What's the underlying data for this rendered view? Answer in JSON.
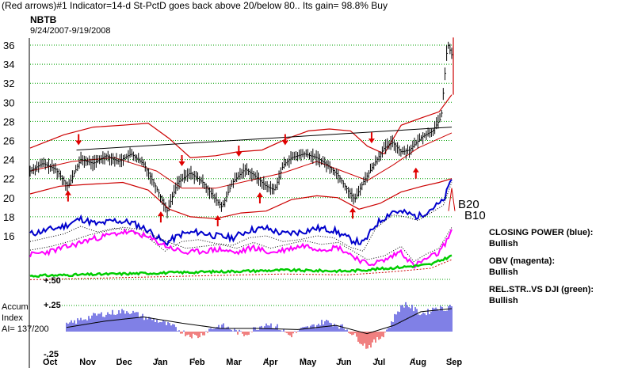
{
  "header": {
    "title": "(Red arrows)#1 Indicator=14-d St-PctD goes back above 20/below 80.. Its gain= 98.8% Buy",
    "symbol": "NBTB",
    "date_range": "9/24/2007-9/19/2008"
  },
  "indicators": {
    "closing_power": {
      "label": "CLOSING POWER (blue):",
      "status": "Bullish",
      "color": "#0000cc"
    },
    "obv": {
      "label": "OBV (magenta):",
      "status": "Bullish",
      "color": "#ff00ff"
    },
    "rel_str": {
      "label": "REL.STR..VS DJI (green):",
      "status": "Bullish",
      "color": "#00cc00"
    }
  },
  "accum": {
    "line1": "Accum",
    "line2": "Index",
    "value_label": "AI= 137/200",
    "tick_top": "+.50",
    "tick_mid": "+.25",
    "tick_low": "-.25"
  },
  "band_labels": {
    "upper": "B20",
    "lower": "B10"
  },
  "chart_data": {
    "type": "line",
    "ylim": [
      14,
      37
    ],
    "yticks": [
      16,
      18,
      20,
      22,
      24,
      26,
      28,
      30,
      32,
      34,
      36
    ],
    "grid": true,
    "x_months": [
      "Oct",
      "Nov",
      "Dec",
      "Jan",
      "Feb",
      "Mar",
      "Apr",
      "May",
      "Jun",
      "Jul",
      "Aug",
      "Sep"
    ],
    "price_points": [
      {
        "t": 0.0,
        "v": 22.8
      },
      {
        "t": 0.03,
        "v": 23.6
      },
      {
        "t": 0.06,
        "v": 23.0
      },
      {
        "t": 0.09,
        "v": 21.2
      },
      {
        "t": 0.12,
        "v": 24.0
      },
      {
        "t": 0.15,
        "v": 23.6
      },
      {
        "t": 0.18,
        "v": 24.4
      },
      {
        "t": 0.21,
        "v": 23.8
      },
      {
        "t": 0.24,
        "v": 24.6
      },
      {
        "t": 0.27,
        "v": 23.5
      },
      {
        "t": 0.3,
        "v": 21.0
      },
      {
        "t": 0.325,
        "v": 18.6
      },
      {
        "t": 0.35,
        "v": 21.6
      },
      {
        "t": 0.38,
        "v": 22.6
      },
      {
        "t": 0.41,
        "v": 21.6
      },
      {
        "t": 0.43,
        "v": 20.4
      },
      {
        "t": 0.455,
        "v": 19.0
      },
      {
        "t": 0.48,
        "v": 21.6
      },
      {
        "t": 0.51,
        "v": 23.0
      },
      {
        "t": 0.53,
        "v": 22.4
      },
      {
        "t": 0.56,
        "v": 21.2
      },
      {
        "t": 0.58,
        "v": 20.8
      },
      {
        "t": 0.6,
        "v": 23.4
      },
      {
        "t": 0.62,
        "v": 24.2
      },
      {
        "t": 0.65,
        "v": 24.6
      },
      {
        "t": 0.68,
        "v": 24.2
      },
      {
        "t": 0.7,
        "v": 23.6
      },
      {
        "t": 0.73,
        "v": 22.4
      },
      {
        "t": 0.75,
        "v": 21.0
      },
      {
        "t": 0.77,
        "v": 19.8
      },
      {
        "t": 0.79,
        "v": 21.6
      },
      {
        "t": 0.82,
        "v": 23.8
      },
      {
        "t": 0.84,
        "v": 25.2
      },
      {
        "t": 0.86,
        "v": 25.8
      },
      {
        "t": 0.88,
        "v": 24.8
      },
      {
        "t": 0.9,
        "v": 25.0
      },
      {
        "t": 0.93,
        "v": 26.4
      },
      {
        "t": 0.955,
        "v": 27.0
      },
      {
        "t": 0.975,
        "v": 28.4
      },
      {
        "t": 0.99,
        "v": 36.2
      },
      {
        "t": 1.0,
        "v": 35.0
      }
    ],
    "upper_band": [
      {
        "t": 0.0,
        "v": 25.2
      },
      {
        "t": 0.08,
        "v": 26.6
      },
      {
        "t": 0.15,
        "v": 27.4
      },
      {
        "t": 0.22,
        "v": 27.6
      },
      {
        "t": 0.28,
        "v": 27.8
      },
      {
        "t": 0.33,
        "v": 26.2
      },
      {
        "t": 0.38,
        "v": 24.2
      },
      {
        "t": 0.44,
        "v": 24.4
      },
      {
        "t": 0.49,
        "v": 24.8
      },
      {
        "t": 0.55,
        "v": 25.0
      },
      {
        "t": 0.61,
        "v": 26.2
      },
      {
        "t": 0.66,
        "v": 27.0
      },
      {
        "t": 0.71,
        "v": 27.2
      },
      {
        "t": 0.76,
        "v": 27.0
      },
      {
        "t": 0.8,
        "v": 25.4
      },
      {
        "t": 0.84,
        "v": 24.6
      },
      {
        "t": 0.88,
        "v": 27.6
      },
      {
        "t": 0.93,
        "v": 28.4
      },
      {
        "t": 0.97,
        "v": 29.0
      },
      {
        "t": 1.0,
        "v": 30.8
      }
    ],
    "lower_band": [
      {
        "t": 0.0,
        "v": 20.4
      },
      {
        "t": 0.07,
        "v": 21.2
      },
      {
        "t": 0.14,
        "v": 21.4
      },
      {
        "t": 0.22,
        "v": 21.6
      },
      {
        "t": 0.28,
        "v": 20.8
      },
      {
        "t": 0.33,
        "v": 18.8
      },
      {
        "t": 0.38,
        "v": 18.0
      },
      {
        "t": 0.44,
        "v": 17.8
      },
      {
        "t": 0.5,
        "v": 18.4
      },
      {
        "t": 0.56,
        "v": 18.6
      },
      {
        "t": 0.62,
        "v": 19.8
      },
      {
        "t": 0.68,
        "v": 20.2
      },
      {
        "t": 0.73,
        "v": 20.0
      },
      {
        "t": 0.78,
        "v": 18.8
      },
      {
        "t": 0.83,
        "v": 19.4
      },
      {
        "t": 0.88,
        "v": 20.6
      },
      {
        "t": 0.93,
        "v": 21.2
      },
      {
        "t": 0.97,
        "v": 21.6
      },
      {
        "t": 1.0,
        "v": 22.0
      }
    ],
    "moving_average": [
      {
        "t": 0.0,
        "v": 22.8
      },
      {
        "t": 0.1,
        "v": 23.8
      },
      {
        "t": 0.2,
        "v": 24.2
      },
      {
        "t": 0.3,
        "v": 22.8
      },
      {
        "t": 0.36,
        "v": 21.0
      },
      {
        "t": 0.44,
        "v": 21.0
      },
      {
        "t": 0.52,
        "v": 21.8
      },
      {
        "t": 0.6,
        "v": 22.6
      },
      {
        "t": 0.68,
        "v": 23.8
      },
      {
        "t": 0.74,
        "v": 22.8
      },
      {
        "t": 0.8,
        "v": 21.8
      },
      {
        "t": 0.86,
        "v": 23.4
      },
      {
        "t": 0.92,
        "v": 25.2
      },
      {
        "t": 1.0,
        "v": 26.8
      }
    ],
    "trendline": [
      {
        "t": 0.11,
        "v": 25.0
      },
      {
        "t": 1.0,
        "v": 27.4
      }
    ],
    "buy_arrows": [
      {
        "t": 0.09,
        "v": 19.6
      },
      {
        "t": 0.31,
        "v": 17.4
      },
      {
        "t": 0.445,
        "v": 17.0
      },
      {
        "t": 0.545,
        "v": 19.4
      },
      {
        "t": 0.765,
        "v": 17.8
      },
      {
        "t": 0.915,
        "v": 22.0
      }
    ],
    "sell_arrows": [
      {
        "t": 0.115,
        "v": 26.0
      },
      {
        "t": 0.36,
        "v": 23.8
      },
      {
        "t": 0.495,
        "v": 24.8
      },
      {
        "t": 0.605,
        "v": 26.0
      },
      {
        "t": 0.81,
        "v": 26.2
      }
    ],
    "closing_power_series": [
      {
        "t": 0.0,
        "v": 16.2
      },
      {
        "t": 0.04,
        "v": 16.6
      },
      {
        "t": 0.08,
        "v": 17.0
      },
      {
        "t": 0.12,
        "v": 17.8
      },
      {
        "t": 0.16,
        "v": 17.2
      },
      {
        "t": 0.2,
        "v": 17.6
      },
      {
        "t": 0.24,
        "v": 17.4
      },
      {
        "t": 0.28,
        "v": 16.6
      },
      {
        "t": 0.32,
        "v": 15.2
      },
      {
        "t": 0.36,
        "v": 16.2
      },
      {
        "t": 0.4,
        "v": 16.4
      },
      {
        "t": 0.44,
        "v": 16.0
      },
      {
        "t": 0.48,
        "v": 15.8
      },
      {
        "t": 0.52,
        "v": 16.6
      },
      {
        "t": 0.56,
        "v": 16.8
      },
      {
        "t": 0.6,
        "v": 16.2
      },
      {
        "t": 0.64,
        "v": 16.4
      },
      {
        "t": 0.68,
        "v": 16.8
      },
      {
        "t": 0.72,
        "v": 16.6
      },
      {
        "t": 0.76,
        "v": 15.6
      },
      {
        "t": 0.79,
        "v": 15.2
      },
      {
        "t": 0.82,
        "v": 17.2
      },
      {
        "t": 0.86,
        "v": 18.6
      },
      {
        "t": 0.89,
        "v": 18.4
      },
      {
        "t": 0.92,
        "v": 18.0
      },
      {
        "t": 0.95,
        "v": 18.8
      },
      {
        "t": 0.98,
        "v": 19.6
      },
      {
        "t": 1.0,
        "v": 22.0
      }
    ],
    "obv_series": [
      {
        "t": 0.0,
        "v": 14.0
      },
      {
        "t": 0.05,
        "v": 14.4
      },
      {
        "t": 0.1,
        "v": 15.0
      },
      {
        "t": 0.14,
        "v": 15.6
      },
      {
        "t": 0.18,
        "v": 16.0
      },
      {
        "t": 0.22,
        "v": 16.4
      },
      {
        "t": 0.26,
        "v": 16.2
      },
      {
        "t": 0.3,
        "v": 15.4
      },
      {
        "t": 0.33,
        "v": 14.8
      },
      {
        "t": 0.37,
        "v": 14.2
      },
      {
        "t": 0.41,
        "v": 14.4
      },
      {
        "t": 0.45,
        "v": 14.6
      },
      {
        "t": 0.49,
        "v": 14.2
      },
      {
        "t": 0.53,
        "v": 14.8
      },
      {
        "t": 0.57,
        "v": 14.2
      },
      {
        "t": 0.61,
        "v": 14.6
      },
      {
        "t": 0.65,
        "v": 15.0
      },
      {
        "t": 0.69,
        "v": 14.6
      },
      {
        "t": 0.73,
        "v": 14.8
      },
      {
        "t": 0.77,
        "v": 13.8
      },
      {
        "t": 0.8,
        "v": 13.0
      },
      {
        "t": 0.84,
        "v": 13.4
      },
      {
        "t": 0.88,
        "v": 14.4
      },
      {
        "t": 0.91,
        "v": 12.8
      },
      {
        "t": 0.94,
        "v": 13.6
      },
      {
        "t": 0.97,
        "v": 14.2
      },
      {
        "t": 1.0,
        "v": 16.4
      }
    ],
    "rel_str_series": [
      {
        "t": 0.0,
        "v": 11.8
      },
      {
        "t": 0.2,
        "v": 12.0
      },
      {
        "t": 0.4,
        "v": 12.2
      },
      {
        "t": 0.6,
        "v": 12.4
      },
      {
        "t": 0.75,
        "v": 12.3
      },
      {
        "t": 0.85,
        "v": 12.6
      },
      {
        "t": 0.95,
        "v": 13.0
      },
      {
        "t": 1.0,
        "v": 13.9
      }
    ],
    "accum_ylim": [
      -0.25,
      0.5
    ],
    "accum_series": [
      {
        "t": 0.0,
        "v": 0.06
      },
      {
        "t": 0.04,
        "v": 0.12
      },
      {
        "t": 0.08,
        "v": 0.16
      },
      {
        "t": 0.12,
        "v": 0.18
      },
      {
        "t": 0.16,
        "v": 0.2
      },
      {
        "t": 0.2,
        "v": 0.14
      },
      {
        "t": 0.24,
        "v": 0.1
      },
      {
        "t": 0.28,
        "v": 0.04
      },
      {
        "t": 0.31,
        "v": -0.02
      },
      {
        "t": 0.34,
        "v": -0.05
      },
      {
        "t": 0.37,
        "v": 0.02
      },
      {
        "t": 0.4,
        "v": 0.06
      },
      {
        "t": 0.43,
        "v": 0.02
      },
      {
        "t": 0.46,
        "v": -0.03
      },
      {
        "t": 0.49,
        "v": 0.03
      },
      {
        "t": 0.52,
        "v": 0.08
      },
      {
        "t": 0.55,
        "v": 0.04
      },
      {
        "t": 0.58,
        "v": -0.04
      },
      {
        "t": 0.61,
        "v": 0.02
      },
      {
        "t": 0.64,
        "v": 0.05
      },
      {
        "t": 0.67,
        "v": 0.1
      },
      {
        "t": 0.7,
        "v": 0.07
      },
      {
        "t": 0.73,
        "v": 0.02
      },
      {
        "t": 0.76,
        "v": -0.08
      },
      {
        "t": 0.78,
        "v": -0.15
      },
      {
        "t": 0.8,
        "v": -0.1
      },
      {
        "t": 0.82,
        "v": -0.04
      },
      {
        "t": 0.84,
        "v": 0.06
      },
      {
        "t": 0.86,
        "v": 0.2
      },
      {
        "t": 0.88,
        "v": 0.27
      },
      {
        "t": 0.9,
        "v": 0.22
      },
      {
        "t": 0.92,
        "v": 0.17
      },
      {
        "t": 0.94,
        "v": 0.19
      },
      {
        "t": 0.96,
        "v": 0.24
      },
      {
        "t": 0.98,
        "v": 0.21
      },
      {
        "t": 1.0,
        "v": 0.26
      }
    ],
    "accum_ma": [
      {
        "t": 0.0,
        "v": 0.04
      },
      {
        "t": 0.1,
        "v": 0.1
      },
      {
        "t": 0.2,
        "v": 0.14
      },
      {
        "t": 0.3,
        "v": 0.08
      },
      {
        "t": 0.4,
        "v": 0.03
      },
      {
        "t": 0.5,
        "v": 0.03
      },
      {
        "t": 0.6,
        "v": 0.02
      },
      {
        "t": 0.7,
        "v": 0.06
      },
      {
        "t": 0.78,
        "v": -0.02
      },
      {
        "t": 0.85,
        "v": 0.06
      },
      {
        "t": 0.92,
        "v": 0.19
      },
      {
        "t": 1.0,
        "v": 0.22
      }
    ]
  }
}
